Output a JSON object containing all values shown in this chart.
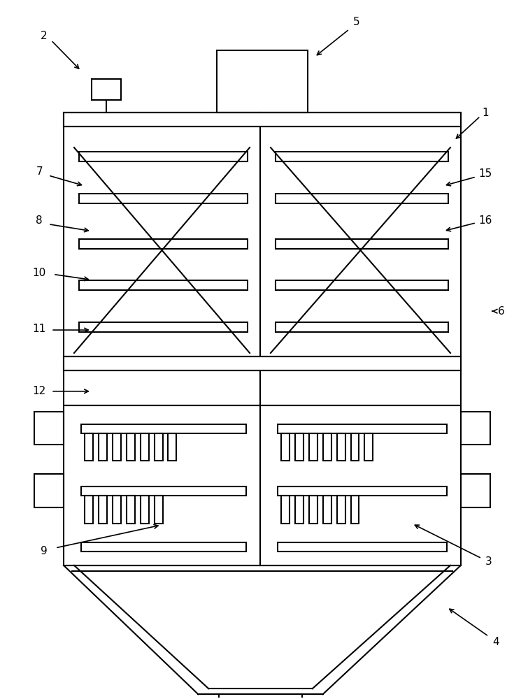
{
  "bg_color": "#ffffff",
  "line_color": "#000000",
  "lw": 1.5,
  "fig_width": 7.45,
  "fig_height": 10.0,
  "label_fs": 11
}
